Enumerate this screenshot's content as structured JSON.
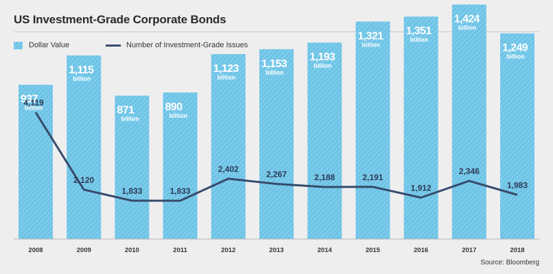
{
  "header": {
    "title": "US Investment-Grade Corporate Bonds"
  },
  "legend": {
    "bar_label": "Dollar Value",
    "line_label": "Number of Investment-Grade Issues"
  },
  "footer": {
    "source": "Source: Bloomberg"
  },
  "colors": {
    "bar": "#6cc3e6",
    "bar_stripe": "#82cdeb",
    "line": "#374a6b",
    "background": "#eeeeef"
  },
  "chart_data": {
    "type": "bar",
    "title": "US Investment-Grade Corporate Bonds",
    "xlabel": "",
    "ylabel": "",
    "categories": [
      "2008",
      "2009",
      "2010",
      "2011",
      "2012",
      "2013",
      "2014",
      "2015",
      "2016",
      "2017",
      "2018"
    ],
    "series": [
      {
        "name": "Dollar Value",
        "type": "bar",
        "values": [
          937,
          1115,
          871,
          890,
          1123,
          1153,
          1193,
          1321,
          1351,
          1424,
          1249
        ],
        "labels": [
          "937",
          "1,115",
          "871",
          "890",
          "1,123",
          "1,153",
          "1,193",
          "1,321",
          "1,351",
          "1,424",
          "1,249"
        ],
        "unit": "billion"
      },
      {
        "name": "Number of Investment-Grade Issues",
        "type": "line",
        "values": [
          4119,
          2120,
          1833,
          1833,
          2402,
          2267,
          2188,
          2191,
          1912,
          2346,
          1983
        ],
        "labels": [
          "4,119",
          "2,120",
          "1,833",
          "1,833",
          "2,402",
          "2,267",
          "2,188",
          "2,191",
          "1,912",
          "2,346",
          "1,983"
        ]
      }
    ],
    "grid": false,
    "legend_position": "top-left"
  }
}
